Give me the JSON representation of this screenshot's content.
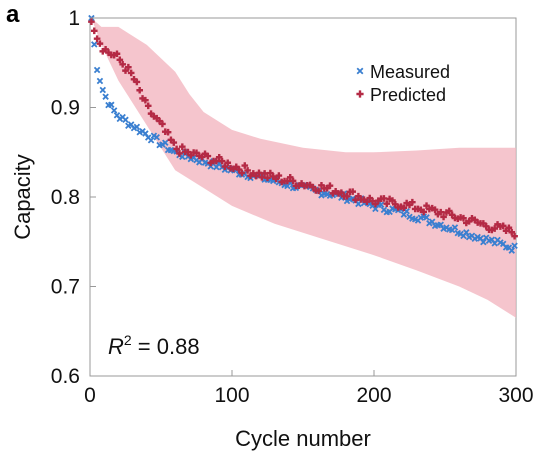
{
  "panel_label": "a",
  "annotation": {
    "base": "R",
    "sup": "2",
    "rest": " = 0.88"
  },
  "colors": {
    "measured": "#3a7fd0",
    "predicted": "#b42a45",
    "band": "#f2b7c0",
    "frame": "#999999"
  },
  "chart_data": {
    "type": "scatter",
    "xlabel": "Cycle number",
    "ylabel": "Capacity",
    "xlim": [
      0,
      300
    ],
    "ylim": [
      0.6,
      1.0
    ],
    "xticks": [
      0,
      100,
      200,
      300
    ],
    "yticks": [
      0.6,
      0.7,
      0.8,
      0.9,
      1.0
    ],
    "xtick_labels": [
      "0",
      "100",
      "200",
      "300"
    ],
    "ytick_labels": [
      "0.6",
      "0.7",
      "0.8",
      "0.9",
      "1"
    ],
    "legend": {
      "position": "top-right",
      "entries": [
        "Measured",
        "Predicted"
      ]
    },
    "grid": false,
    "measured_anchors": [
      [
        1,
        1.0
      ],
      [
        3,
        0.97
      ],
      [
        5,
        0.945
      ],
      [
        8,
        0.925
      ],
      [
        10,
        0.915
      ],
      [
        15,
        0.9
      ],
      [
        20,
        0.89
      ],
      [
        30,
        0.88
      ],
      [
        40,
        0.87
      ],
      [
        50,
        0.86
      ],
      [
        60,
        0.85
      ],
      [
        80,
        0.84
      ],
      [
        100,
        0.83
      ],
      [
        120,
        0.822
      ],
      [
        150,
        0.81
      ],
      [
        180,
        0.8
      ],
      [
        200,
        0.79
      ],
      [
        220,
        0.783
      ],
      [
        240,
        0.773
      ],
      [
        260,
        0.762
      ],
      [
        280,
        0.752
      ],
      [
        300,
        0.742
      ]
    ],
    "predicted_anchors": [
      [
        1,
        1.0
      ],
      [
        3,
        0.99
      ],
      [
        5,
        0.98
      ],
      [
        8,
        0.97
      ],
      [
        10,
        0.965
      ],
      [
        15,
        0.96
      ],
      [
        20,
        0.955
      ],
      [
        30,
        0.935
      ],
      [
        40,
        0.9
      ],
      [
        50,
        0.88
      ],
      [
        60,
        0.855
      ],
      [
        70,
        0.848
      ],
      [
        80,
        0.845
      ],
      [
        100,
        0.835
      ],
      [
        120,
        0.825
      ],
      [
        150,
        0.815
      ],
      [
        180,
        0.805
      ],
      [
        200,
        0.795
      ],
      [
        220,
        0.792
      ],
      [
        240,
        0.785
      ],
      [
        260,
        0.777
      ],
      [
        280,
        0.768
      ],
      [
        300,
        0.76
      ]
    ],
    "band_upper": [
      [
        1,
        1.0
      ],
      [
        8,
        0.99
      ],
      [
        20,
        0.99
      ],
      [
        40,
        0.97
      ],
      [
        60,
        0.94
      ],
      [
        70,
        0.915
      ],
      [
        80,
        0.895
      ],
      [
        100,
        0.875
      ],
      [
        120,
        0.865
      ],
      [
        150,
        0.855
      ],
      [
        180,
        0.85
      ],
      [
        200,
        0.85
      ],
      [
        230,
        0.852
      ],
      [
        260,
        0.855
      ],
      [
        300,
        0.855
      ]
    ],
    "band_lower": [
      [
        1,
        1.0
      ],
      [
        8,
        0.97
      ],
      [
        20,
        0.93
      ],
      [
        40,
        0.88
      ],
      [
        60,
        0.83
      ],
      [
        80,
        0.81
      ],
      [
        100,
        0.79
      ],
      [
        130,
        0.77
      ],
      [
        160,
        0.755
      ],
      [
        200,
        0.735
      ],
      [
        230,
        0.718
      ],
      [
        260,
        0.7
      ],
      [
        280,
        0.685
      ],
      [
        300,
        0.665
      ]
    ]
  }
}
